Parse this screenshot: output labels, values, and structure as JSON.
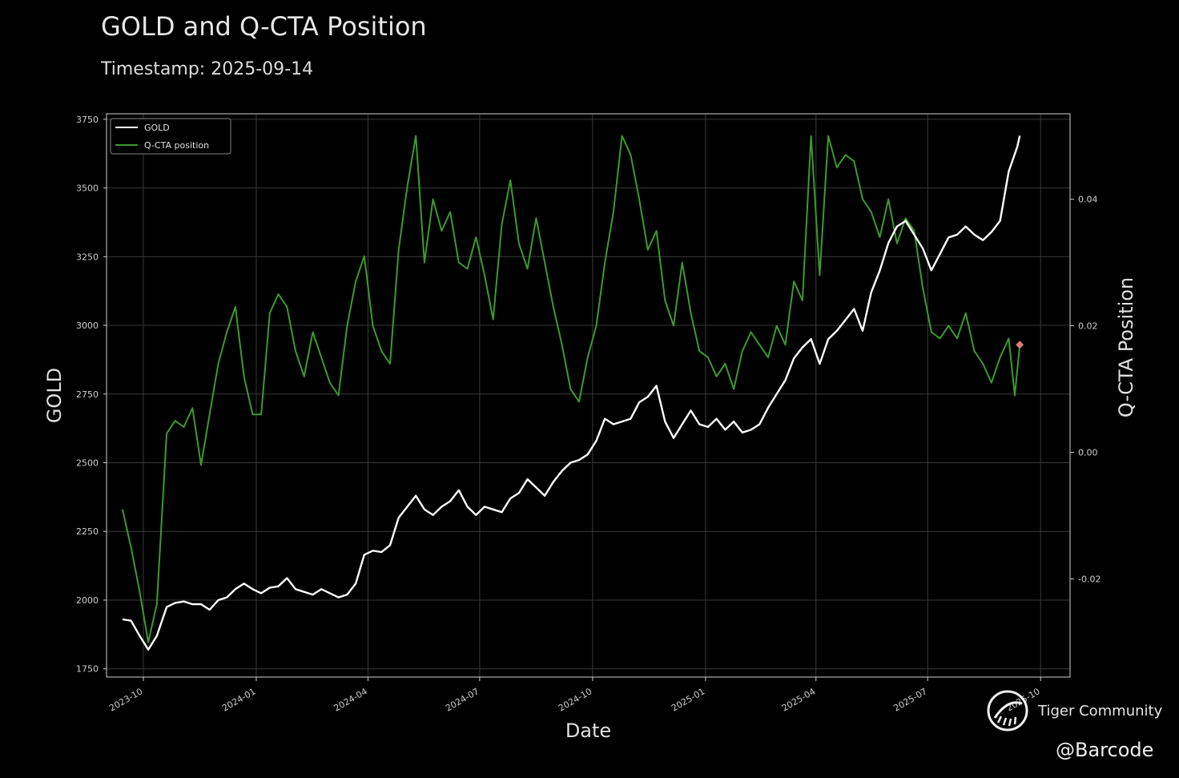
{
  "header": {
    "title": "GOLD and Q-CTA Position",
    "subtitle": "Timestamp: 2025-09-14"
  },
  "watermark": {
    "community": "Tiger Community",
    "handle": "@Barcode",
    "logo_icon": "tiger-logo-icon"
  },
  "colors": {
    "background": "#000000",
    "gold_line": "#ffffff",
    "cta_line": "#3c9b2c",
    "grid": "#3a3a3a",
    "marker": "#e07a7a"
  },
  "chart_data": {
    "type": "line",
    "xlabel": "Date",
    "ylabel": "GOLD",
    "y2label": "Q-CTA Position",
    "ylim": [
      1720,
      3770
    ],
    "y2lim": [
      -0.0355,
      0.0535
    ],
    "xlim": [
      "2023-09-01",
      "2025-10-25"
    ],
    "x_ticks": [
      "2023-10",
      "2024-01",
      "2024-04",
      "2024-07",
      "2024-10",
      "2025-01",
      "2025-04",
      "2025-07",
      "2025-10"
    ],
    "y_ticks": [
      1750,
      2000,
      2250,
      2500,
      2750,
      3000,
      3250,
      3500,
      3750
    ],
    "y2_ticks": [
      -0.02,
      0.0,
      0.02,
      0.04
    ],
    "y2_tick_labels": [
      "-0.02",
      "0.00",
      "0.02",
      "0.04"
    ],
    "grid": true,
    "legend_position": "top-left",
    "series": [
      {
        "name": "GOLD",
        "axis": "left",
        "points": [
          [
            "2023-09-14",
            1930
          ],
          [
            "2023-09-21",
            1925
          ],
          [
            "2023-09-28",
            1870
          ],
          [
            "2023-10-05",
            1820
          ],
          [
            "2023-10-12",
            1870
          ],
          [
            "2023-10-20",
            1975
          ],
          [
            "2023-10-27",
            1990
          ],
          [
            "2023-11-03",
            1995
          ],
          [
            "2023-11-10",
            1985
          ],
          [
            "2023-11-17",
            1985
          ],
          [
            "2023-11-24",
            1965
          ],
          [
            "2023-12-01",
            2000
          ],
          [
            "2023-12-08",
            2010
          ],
          [
            "2023-12-15",
            2040
          ],
          [
            "2023-12-22",
            2060
          ],
          [
            "2023-12-29",
            2040
          ],
          [
            "2024-01-05",
            2025
          ],
          [
            "2024-01-12",
            2045
          ],
          [
            "2024-01-19",
            2050
          ],
          [
            "2024-01-26",
            2080
          ],
          [
            "2024-02-02",
            2040
          ],
          [
            "2024-02-09",
            2030
          ],
          [
            "2024-02-16",
            2020
          ],
          [
            "2024-02-23",
            2040
          ],
          [
            "2024-03-01",
            2025
          ],
          [
            "2024-03-08",
            2010
          ],
          [
            "2024-03-15",
            2020
          ],
          [
            "2024-03-22",
            2060
          ],
          [
            "2024-03-29",
            2165
          ],
          [
            "2024-04-05",
            2180
          ],
          [
            "2024-04-12",
            2175
          ],
          [
            "2024-04-19",
            2200
          ],
          [
            "2024-04-26",
            2300
          ],
          [
            "2024-05-03",
            2340
          ],
          [
            "2024-05-10",
            2380
          ],
          [
            "2024-05-17",
            2330
          ],
          [
            "2024-05-24",
            2310
          ],
          [
            "2024-05-31",
            2340
          ],
          [
            "2024-06-07",
            2360
          ],
          [
            "2024-06-14",
            2400
          ],
          [
            "2024-06-21",
            2340
          ],
          [
            "2024-06-28",
            2310
          ],
          [
            "2024-07-05",
            2340
          ],
          [
            "2024-07-12",
            2330
          ],
          [
            "2024-07-19",
            2320
          ],
          [
            "2024-07-26",
            2370
          ],
          [
            "2024-08-02",
            2390
          ],
          [
            "2024-08-09",
            2440
          ],
          [
            "2024-08-16",
            2410
          ],
          [
            "2024-08-23",
            2380
          ],
          [
            "2024-08-30",
            2430
          ],
          [
            "2024-09-06",
            2470
          ],
          [
            "2024-09-13",
            2500
          ],
          [
            "2024-09-20",
            2510
          ],
          [
            "2024-09-27",
            2530
          ],
          [
            "2024-10-04",
            2580
          ],
          [
            "2024-10-11",
            2660
          ],
          [
            "2024-10-18",
            2640
          ],
          [
            "2024-10-25",
            2650
          ],
          [
            "2024-11-01",
            2660
          ],
          [
            "2024-11-08",
            2720
          ],
          [
            "2024-11-15",
            2740
          ],
          [
            "2024-11-22",
            2780
          ],
          [
            "2024-11-29",
            2650
          ],
          [
            "2024-12-06",
            2590
          ],
          [
            "2024-12-13",
            2640
          ],
          [
            "2024-12-20",
            2690
          ],
          [
            "2024-12-27",
            2640
          ],
          [
            "2025-01-03",
            2630
          ],
          [
            "2025-01-10",
            2660
          ],
          [
            "2025-01-17",
            2620
          ],
          [
            "2025-01-24",
            2650
          ],
          [
            "2025-01-31",
            2610
          ],
          [
            "2025-02-07",
            2620
          ],
          [
            "2025-02-14",
            2640
          ],
          [
            "2025-02-21",
            2700
          ],
          [
            "2025-02-28",
            2750
          ],
          [
            "2025-03-07",
            2800
          ],
          [
            "2025-03-14",
            2880
          ],
          [
            "2025-03-21",
            2920
          ],
          [
            "2025-03-28",
            2950
          ],
          [
            "2025-04-04",
            2860
          ],
          [
            "2025-04-11",
            2950
          ],
          [
            "2025-04-18",
            2980
          ],
          [
            "2025-04-25",
            3020
          ],
          [
            "2025-05-02",
            3060
          ],
          [
            "2025-05-09",
            2980
          ],
          [
            "2025-05-16",
            3120
          ],
          [
            "2025-05-23",
            3200
          ],
          [
            "2025-05-30",
            3300
          ],
          [
            "2025-06-06",
            3360
          ],
          [
            "2025-06-13",
            3380
          ],
          [
            "2025-06-20",
            3330
          ],
          [
            "2025-06-27",
            3280
          ],
          [
            "2025-07-04",
            3200
          ],
          [
            "2025-07-11",
            3260
          ],
          [
            "2025-07-18",
            3320
          ],
          [
            "2025-07-25",
            3330
          ],
          [
            "2025-08-01",
            3360
          ],
          [
            "2025-08-08",
            3330
          ],
          [
            "2025-08-15",
            3310
          ],
          [
            "2025-08-22",
            3340
          ],
          [
            "2025-08-29",
            3380
          ],
          [
            "2025-09-05",
            3560
          ],
          [
            "2025-09-12",
            3650
          ],
          [
            "2025-09-14",
            3690
          ]
        ]
      },
      {
        "name": "Q-CTA position",
        "axis": "right",
        "points": [
          [
            "2023-09-14",
            -0.009
          ],
          [
            "2023-09-21",
            -0.015
          ],
          [
            "2023-09-28",
            -0.022
          ],
          [
            "2023-10-05",
            -0.03
          ],
          [
            "2023-10-12",
            -0.024
          ],
          [
            "2023-10-20",
            0.003
          ],
          [
            "2023-10-27",
            0.005
          ],
          [
            "2023-11-03",
            0.004
          ],
          [
            "2023-11-10",
            0.007
          ],
          [
            "2023-11-17",
            -0.002
          ],
          [
            "2023-11-24",
            0.006
          ],
          [
            "2023-12-01",
            0.014
          ],
          [
            "2023-12-08",
            0.019
          ],
          [
            "2023-12-15",
            0.023
          ],
          [
            "2023-12-22",
            0.012
          ],
          [
            "2023-12-29",
            0.006
          ],
          [
            "2024-01-05",
            0.006
          ],
          [
            "2024-01-12",
            0.022
          ],
          [
            "2024-01-19",
            0.025
          ],
          [
            "2024-01-26",
            0.023
          ],
          [
            "2024-02-02",
            0.016
          ],
          [
            "2024-02-09",
            0.012
          ],
          [
            "2024-02-16",
            0.019
          ],
          [
            "2024-02-23",
            0.015
          ],
          [
            "2024-03-01",
            0.011
          ],
          [
            "2024-03-08",
            0.009
          ],
          [
            "2024-03-15",
            0.02
          ],
          [
            "2024-03-22",
            0.027
          ],
          [
            "2024-03-29",
            0.031
          ],
          [
            "2024-04-05",
            0.02
          ],
          [
            "2024-04-12",
            0.016
          ],
          [
            "2024-04-19",
            0.014
          ],
          [
            "2024-04-26",
            0.032
          ],
          [
            "2024-05-03",
            0.042
          ],
          [
            "2024-05-10",
            0.05
          ],
          [
            "2024-05-17",
            0.03
          ],
          [
            "2024-05-24",
            0.04
          ],
          [
            "2024-05-31",
            0.035
          ],
          [
            "2024-06-07",
            0.038
          ],
          [
            "2024-06-14",
            0.03
          ],
          [
            "2024-06-21",
            0.029
          ],
          [
            "2024-06-28",
            0.034
          ],
          [
            "2024-07-05",
            0.028
          ],
          [
            "2024-07-12",
            0.021
          ],
          [
            "2024-07-19",
            0.036
          ],
          [
            "2024-07-26",
            0.043
          ],
          [
            "2024-08-02",
            0.033
          ],
          [
            "2024-08-09",
            0.029
          ],
          [
            "2024-08-16",
            0.037
          ],
          [
            "2024-08-23",
            0.03
          ],
          [
            "2024-08-30",
            0.023
          ],
          [
            "2024-09-06",
            0.017
          ],
          [
            "2024-09-13",
            0.01
          ],
          [
            "2024-09-20",
            0.008
          ],
          [
            "2024-09-27",
            0.015
          ],
          [
            "2024-10-04",
            0.02
          ],
          [
            "2024-10-11",
            0.03
          ],
          [
            "2024-10-18",
            0.038
          ],
          [
            "2024-10-25",
            0.05
          ],
          [
            "2024-11-01",
            0.047
          ],
          [
            "2024-11-08",
            0.04
          ],
          [
            "2024-11-15",
            0.032
          ],
          [
            "2024-11-22",
            0.035
          ],
          [
            "2024-11-29",
            0.024
          ],
          [
            "2024-12-06",
            0.02
          ],
          [
            "2024-12-13",
            0.03
          ],
          [
            "2024-12-20",
            0.022
          ],
          [
            "2024-12-27",
            0.016
          ],
          [
            "2025-01-03",
            0.015
          ],
          [
            "2025-01-10",
            0.012
          ],
          [
            "2025-01-17",
            0.014
          ],
          [
            "2025-01-24",
            0.01
          ],
          [
            "2025-01-31",
            0.016
          ],
          [
            "2025-02-07",
            0.019
          ],
          [
            "2025-02-14",
            0.017
          ],
          [
            "2025-02-21",
            0.015
          ],
          [
            "2025-02-28",
            0.02
          ],
          [
            "2025-03-07",
            0.017
          ],
          [
            "2025-03-14",
            0.027
          ],
          [
            "2025-03-21",
            0.024
          ],
          [
            "2025-03-28",
            0.05
          ],
          [
            "2025-04-04",
            0.028
          ],
          [
            "2025-04-11",
            0.05
          ],
          [
            "2025-04-18",
            0.045
          ],
          [
            "2025-04-25",
            0.047
          ],
          [
            "2025-05-02",
            0.046
          ],
          [
            "2025-05-09",
            0.04
          ],
          [
            "2025-05-16",
            0.038
          ],
          [
            "2025-05-23",
            0.034
          ],
          [
            "2025-05-30",
            0.04
          ],
          [
            "2025-06-06",
            0.033
          ],
          [
            "2025-06-13",
            0.037
          ],
          [
            "2025-06-20",
            0.035
          ],
          [
            "2025-06-27",
            0.026
          ],
          [
            "2025-07-04",
            0.019
          ],
          [
            "2025-07-11",
            0.018
          ],
          [
            "2025-07-18",
            0.02
          ],
          [
            "2025-07-25",
            0.018
          ],
          [
            "2025-08-01",
            0.022
          ],
          [
            "2025-08-08",
            0.016
          ],
          [
            "2025-08-15",
            0.014
          ],
          [
            "2025-08-22",
            0.011
          ],
          [
            "2025-08-29",
            0.015
          ],
          [
            "2025-09-05",
            0.018
          ],
          [
            "2025-09-10",
            0.009
          ],
          [
            "2025-09-14",
            0.017
          ]
        ]
      }
    ],
    "last_point_marker": {
      "series": "Q-CTA position",
      "date": "2025-09-14",
      "value": 0.017
    }
  }
}
